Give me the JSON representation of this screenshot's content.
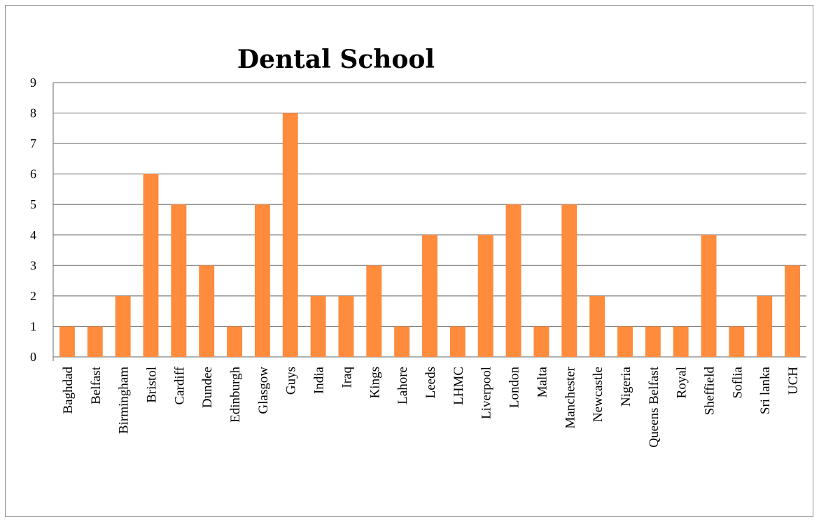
{
  "chart_data": {
    "type": "bar",
    "title": "Dental School",
    "xlabel": "",
    "ylabel": "",
    "ylim": [
      0,
      9
    ],
    "yticks": [
      0,
      1,
      2,
      3,
      4,
      5,
      6,
      7,
      8,
      9
    ],
    "grid": true,
    "legend": "none",
    "bar_color": "#FF8B3D",
    "categories": [
      "Baghdad",
      "Belfast",
      "Birmingham",
      "Bristol",
      "Cardiff",
      "Dundee",
      "Edinburgh",
      "Glasgow",
      "Guys",
      "India",
      "Iraq",
      "Kings",
      "Lahore",
      "Leeds",
      "LHMC",
      "Liverpool",
      "London",
      "Malta",
      "Manchester",
      "Newcastle",
      "Nigeria",
      "Queens Belfast",
      "Royal",
      "Sheffield",
      "Soflia",
      "Sri lanka",
      "UCH"
    ],
    "values": [
      1,
      1,
      2,
      6,
      5,
      3,
      1,
      5,
      8,
      2,
      2,
      3,
      1,
      4,
      1,
      4,
      5,
      1,
      5,
      2,
      1,
      1,
      1,
      4,
      1,
      2,
      3
    ]
  }
}
